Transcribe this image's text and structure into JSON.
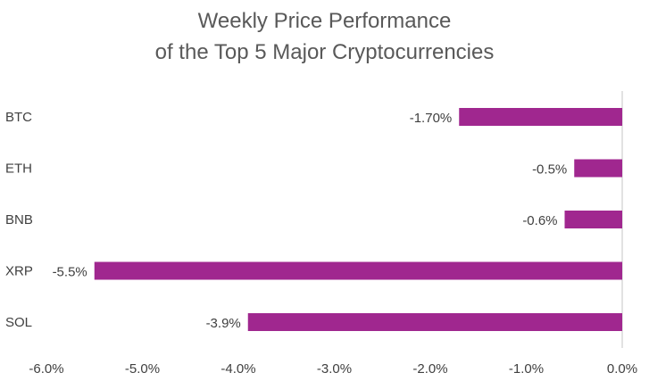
{
  "chart_data": {
    "type": "bar",
    "orientation": "horizontal",
    "title_line1": "Weekly Price Performance",
    "title_line2": "of the Top 5 Major Cryptocurrencies",
    "categories": [
      "BTC",
      "ETH",
      "BNB",
      "XRP",
      "SOL"
    ],
    "values": [
      -1.7,
      -0.5,
      -0.6,
      -5.5,
      -3.9
    ],
    "data_labels": [
      "-1.70%",
      "-0.5%",
      "-0.6%",
      "-5.5%",
      "-3.9%"
    ],
    "xlim": [
      -6.0,
      0.0
    ],
    "x_ticks": [
      -6.0,
      -5.0,
      -4.0,
      -3.0,
      -2.0,
      -1.0,
      0.0
    ],
    "x_tick_labels": [
      "-6.0%",
      "-5.0%",
      "-4.0%",
      "-3.0%",
      "-2.0%",
      "-1.0%",
      "0.0%"
    ],
    "xlabel": "",
    "ylabel": "",
    "grid": false,
    "legend": "none",
    "bar_color": "#A0278F",
    "axis_color": "#D9D9D9"
  }
}
